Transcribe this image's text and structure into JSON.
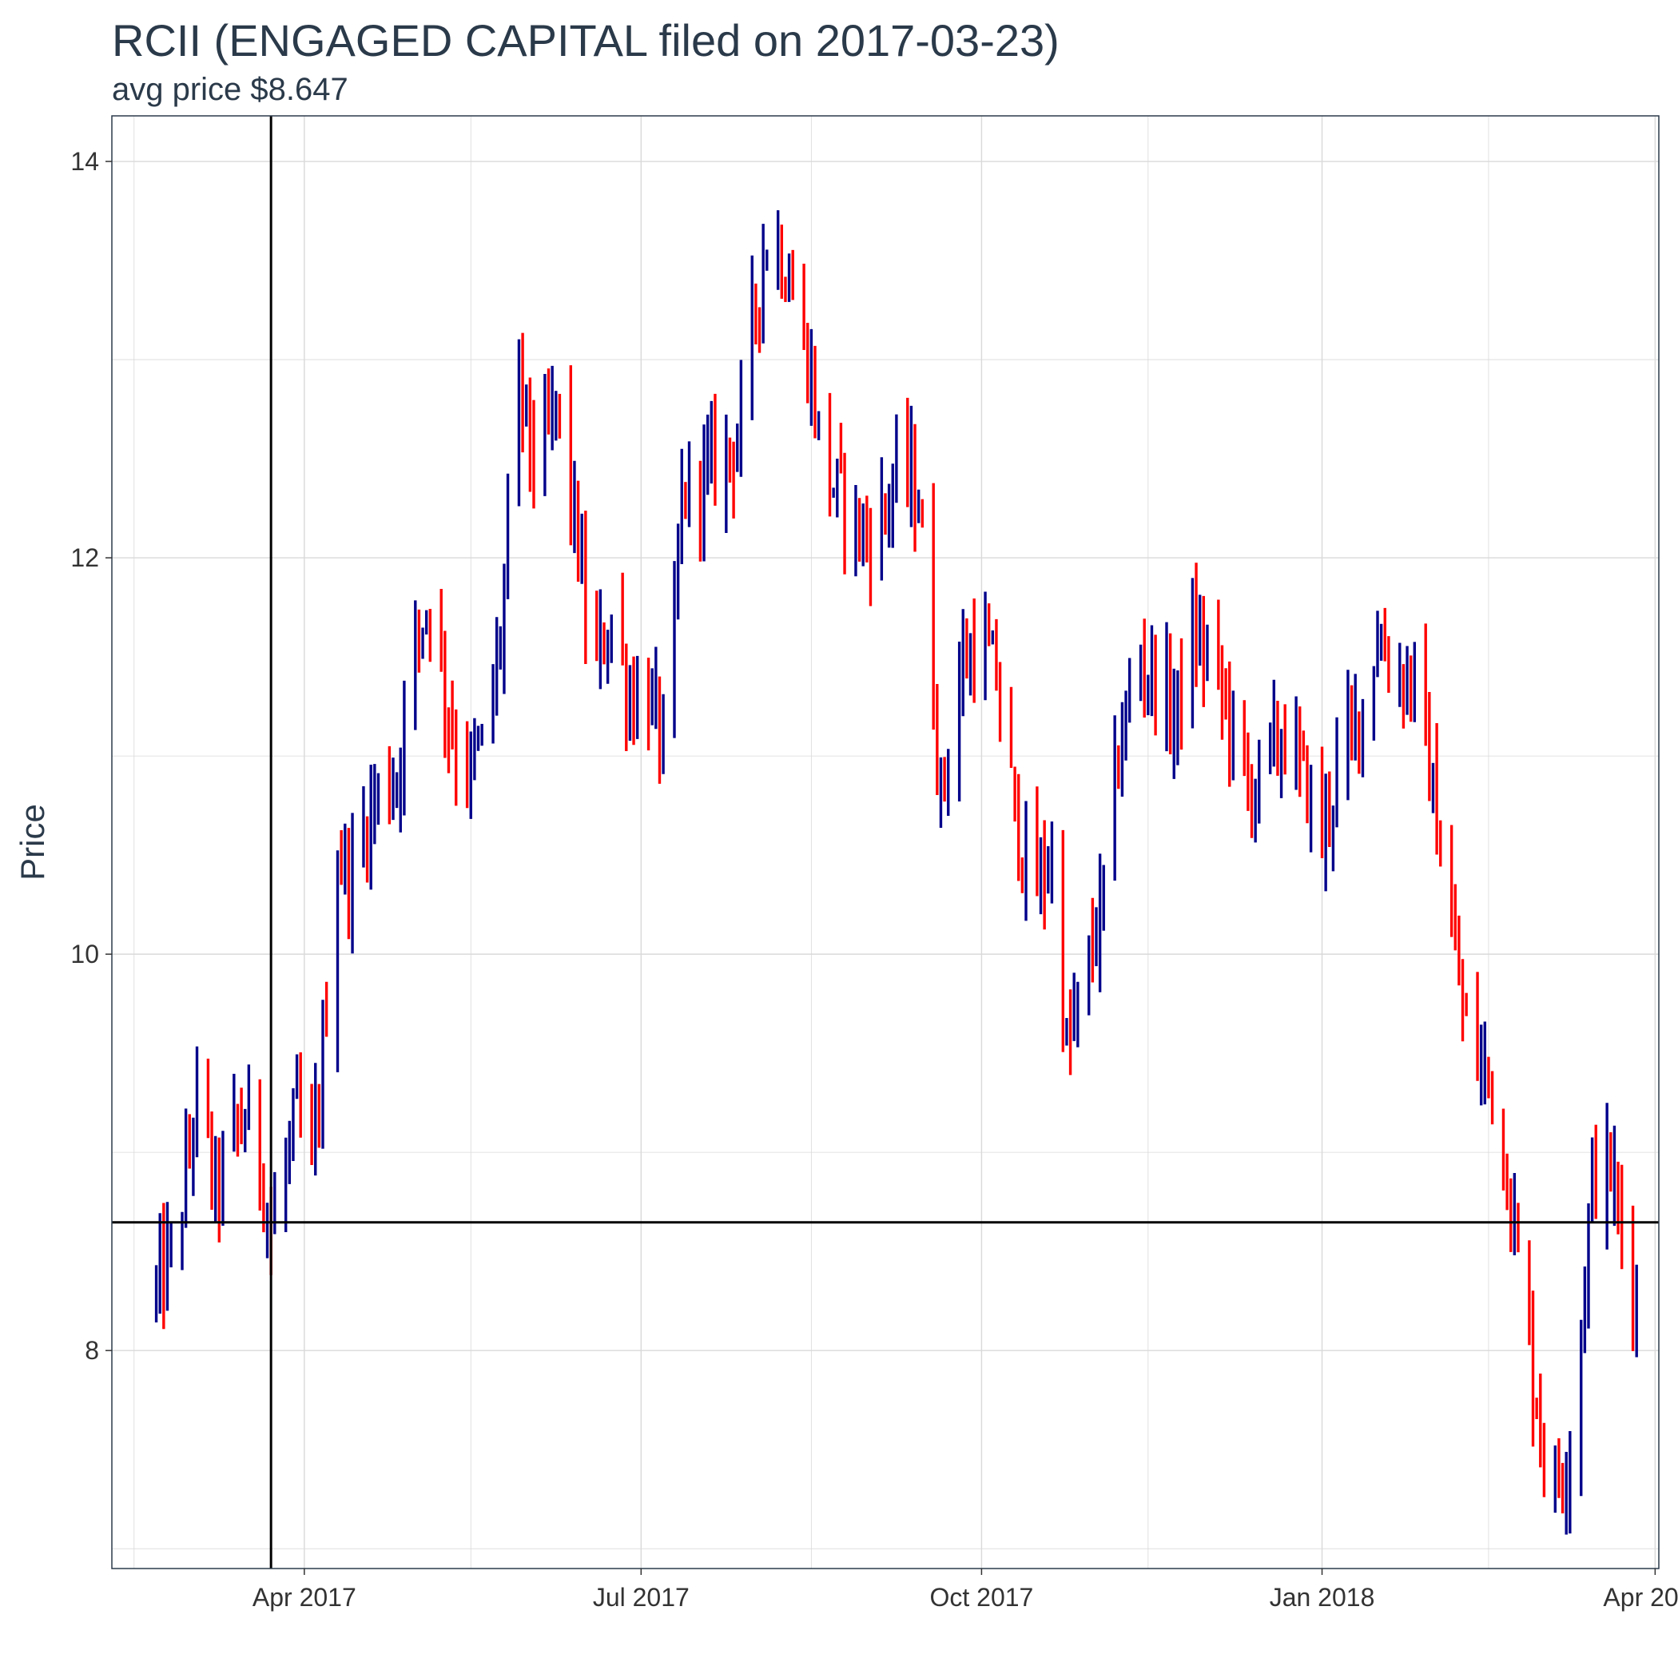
{
  "chart_data": {
    "type": "ohlc",
    "title": "RCII (ENGAGED CAPITAL filed on 2017-03-23)",
    "subtitle": "avg price $8.647",
    "ylabel": "Price",
    "xlabel": "",
    "x_range": [
      "2017-02-08",
      "2018-04-02"
    ],
    "ylim": [
      6.9,
      14.23
    ],
    "x_ticks": [
      {
        "date": "2017-04-01",
        "label": "Apr 2017"
      },
      {
        "date": "2017-07-01",
        "label": "Jul 2017"
      },
      {
        "date": "2017-10-01",
        "label": "Oct 2017"
      },
      {
        "date": "2018-01-01",
        "label": "Jan 2018"
      },
      {
        "date": "2018-04-01",
        "label": "Apr 2018"
      }
    ],
    "y_ticks": [
      8,
      10,
      12,
      14
    ],
    "grid": true,
    "reference_lines": {
      "vertical_date": "2017-03-23",
      "horizontal_value": 8.647
    },
    "colors": {
      "up": "#00008b",
      "down": "#ff0000",
      "reference": "#000000",
      "grid": "#d9d9d9",
      "frame": "#2b3a4a"
    },
    "anchors": [
      [
        "2017-02-20",
        8.3
      ],
      [
        "2017-02-26",
        8.6
      ],
      [
        "2017-03-03",
        9.3
      ],
      [
        "2017-03-08",
        8.8
      ],
      [
        "2017-03-13",
        9.1
      ],
      [
        "2017-03-18",
        9.2
      ],
      [
        "2017-03-23",
        8.6
      ],
      [
        "2017-03-30",
        9.2
      ],
      [
        "2017-04-03",
        8.9
      ],
      [
        "2017-04-06",
        9.5
      ],
      [
        "2017-04-10",
        10.5
      ],
      [
        "2017-04-14",
        10.4
      ],
      [
        "2017-04-20",
        10.8
      ],
      [
        "2017-04-26",
        10.9
      ],
      [
        "2017-05-01",
        11.6
      ],
      [
        "2017-05-05",
        11.8
      ],
      [
        "2017-05-10",
        11.2
      ],
      [
        "2017-05-15",
        10.9
      ],
      [
        "2017-05-20",
        11.1
      ],
      [
        "2017-05-24",
        11.6
      ],
      [
        "2017-05-29",
        12.9
      ],
      [
        "2017-06-03",
        12.4
      ],
      [
        "2017-06-08",
        12.8
      ],
      [
        "2017-06-13",
        12.2
      ],
      [
        "2017-06-18",
        11.4
      ],
      [
        "2017-06-23",
        11.7
      ],
      [
        "2017-06-28",
        11.3
      ],
      [
        "2017-07-03",
        11.3
      ],
      [
        "2017-07-08",
        11.0
      ],
      [
        "2017-07-12",
        12.3
      ],
      [
        "2017-07-17",
        12.4
      ],
      [
        "2017-07-22",
        12.5
      ],
      [
        "2017-07-27",
        12.6
      ],
      [
        "2017-08-01",
        13.3
      ],
      [
        "2017-08-05",
        13.7
      ],
      [
        "2017-08-10",
        13.4
      ],
      [
        "2017-08-15",
        13.0
      ],
      [
        "2017-08-20",
        12.4
      ],
      [
        "2017-08-25",
        12.3
      ],
      [
        "2017-08-30",
        12.1
      ],
      [
        "2017-09-04",
        12.2
      ],
      [
        "2017-09-09",
        12.5
      ],
      [
        "2017-09-14",
        12.3
      ],
      [
        "2017-09-20",
        10.8
      ],
      [
        "2017-09-25",
        11.4
      ],
      [
        "2017-09-30",
        11.6
      ],
      [
        "2017-10-05",
        11.4
      ],
      [
        "2017-10-10",
        10.7
      ],
      [
        "2017-10-15",
        10.3
      ],
      [
        "2017-10-20",
        10.5
      ],
      [
        "2017-10-24",
        9.5
      ],
      [
        "2017-10-28",
        9.8
      ],
      [
        "2017-11-02",
        10.2
      ],
      [
        "2017-11-07",
        11.0
      ],
      [
        "2017-11-12",
        11.5
      ],
      [
        "2017-11-17",
        11.4
      ],
      [
        "2017-11-22",
        11.2
      ],
      [
        "2017-11-27",
        11.6
      ],
      [
        "2017-12-02",
        11.5
      ],
      [
        "2017-12-07",
        11.2
      ],
      [
        "2017-12-12",
        10.8
      ],
      [
        "2017-12-17",
        11.0
      ],
      [
        "2017-12-22",
        11.1
      ],
      [
        "2017-12-27",
        10.9
      ],
      [
        "2018-01-01",
        10.6
      ],
      [
        "2018-01-06",
        11.0
      ],
      [
        "2018-01-11",
        11.2
      ],
      [
        "2018-01-16",
        11.6
      ],
      [
        "2018-01-21",
        11.4
      ],
      [
        "2018-01-26",
        11.4
      ],
      [
        "2018-01-31",
        10.8
      ],
      [
        "2018-02-05",
        10.1
      ],
      [
        "2018-02-10",
        9.5
      ],
      [
        "2018-02-15",
        9.4
      ],
      [
        "2018-02-20",
        8.9
      ],
      [
        "2018-02-24",
        8.3
      ],
      [
        "2018-03-01",
        7.6
      ],
      [
        "2018-03-05",
        7.3
      ],
      [
        "2018-03-10",
        7.6
      ],
      [
        "2018-03-15",
        8.9
      ],
      [
        "2018-03-20",
        8.9
      ],
      [
        "2018-03-24",
        8.5
      ],
      [
        "2018-03-27",
        8.3
      ]
    ]
  }
}
